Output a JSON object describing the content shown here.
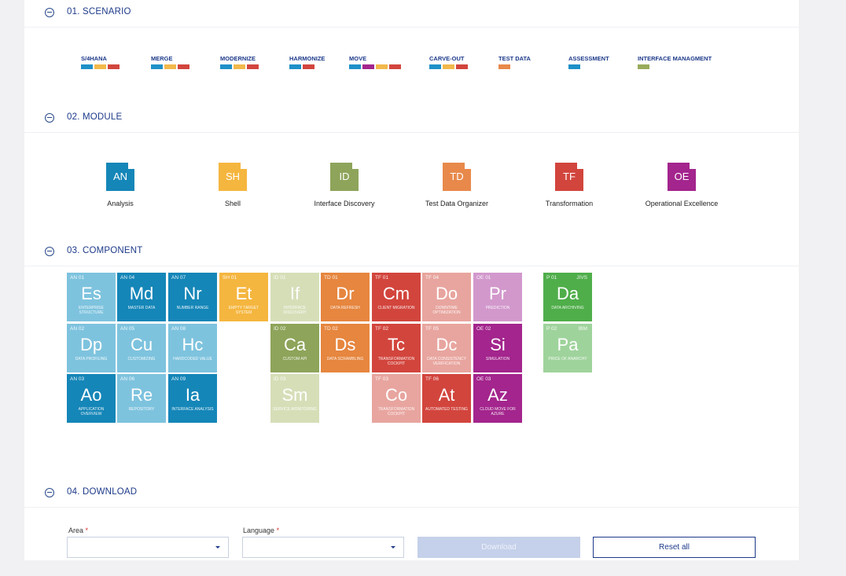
{
  "sections": {
    "scenario": "01. SCENARIO",
    "module": "02. MODULE",
    "component": "03. COMPONENT",
    "download": "04. DOWNLOAD"
  },
  "colors": {
    "blue": "#1e90c8",
    "yellow": "#f2b84b",
    "red": "#d2453d",
    "purple": "#a3258d",
    "orange": "#e8894b",
    "olive": "#98ab5b"
  },
  "scenarios": [
    {
      "label": "S/4HANA",
      "bars": [
        "#1e90c8",
        "#f2b84b",
        "#d2453d"
      ]
    },
    {
      "label": "MERGE",
      "bars": [
        "#1e90c8",
        "#f2b84b",
        "#d2453d"
      ]
    },
    {
      "label": "MODERNIZE",
      "bars": [
        "#1e90c8",
        "#f2b84b",
        "#d2453d"
      ]
    },
    {
      "label": "HARMONIZE",
      "bars": [
        "#1e90c8",
        "#d2453d"
      ]
    },
    {
      "label": "MOVE",
      "bars": [
        "#1e90c8",
        "#a3258d",
        "#f2b84b",
        "#d2453d"
      ]
    },
    {
      "label": "CARVE-OUT",
      "bars": [
        "#1e90c8",
        "#f2b84b",
        "#d2453d"
      ]
    },
    {
      "label": "TEST DATA",
      "bars": [
        "#e8894b"
      ]
    },
    {
      "label": "ASSESSMENT",
      "bars": [
        "#1e90c8"
      ]
    },
    {
      "label": "INTERFACE MANAGMENT",
      "bars": [
        "#98ab5b"
      ]
    }
  ],
  "modules": [
    {
      "abbr": "AN",
      "name": "Analysis",
      "color": "#1586b8"
    },
    {
      "abbr": "SH",
      "name": "Shell",
      "color": "#f5b63f"
    },
    {
      "abbr": "ID",
      "name": "Interface Discovery",
      "color": "#8ea45a"
    },
    {
      "abbr": "TD",
      "name": "Test Data Organizer",
      "color": "#e8894b"
    },
    {
      "abbr": "TF",
      "name": "Transformation",
      "color": "#d2453d"
    },
    {
      "abbr": "OE",
      "name": "Operational Excellence",
      "color": "#a3258d"
    }
  ],
  "components": [
    {
      "code": "AN 01",
      "sym": "Es",
      "desc": "ENTERPRISE STRUCTURE",
      "color": "#7ec3de"
    },
    {
      "code": "AN 04",
      "sym": "Md",
      "desc": "MASTER DATA",
      "color": "#1586b8"
    },
    {
      "code": "AN 07",
      "sym": "Nr",
      "desc": "NUMBER RANGE",
      "color": "#1586b8"
    },
    {
      "code": "SH 01",
      "sym": "Et",
      "desc": "EMPTY TARGET SYSTEM",
      "color": "#f5b63f"
    },
    {
      "code": "ID 01",
      "sym": "If",
      "desc": "INTERFACE DISCOVERY",
      "color": "#d6deb8"
    },
    {
      "code": "TD 01",
      "sym": "Dr",
      "desc": "DATA REFRESH",
      "color": "#e6863f"
    },
    {
      "code": "TF 01",
      "sym": "Cm",
      "desc": "CLIENT MIGRATION",
      "color": "#d2453d"
    },
    {
      "code": "TF 04",
      "sym": "Do",
      "desc": "DOWNTIME OPTIMIZATION",
      "color": "#e8a59f"
    },
    {
      "code": "OE 01",
      "sym": "Pr",
      "desc": "PREDICTION",
      "color": "#d298cc"
    },
    {
      "code": "P 01",
      "code2": "JIVS",
      "sym": "Da",
      "desc": "DATA ARCHIVING",
      "color": "#4fae4a"
    },
    {
      "code": "AN 02",
      "sym": "Dp",
      "desc": "DATA PROFILING",
      "color": "#7ec3de"
    },
    {
      "code": "AN 05",
      "sym": "Cu",
      "desc": "CUSTOMIZING",
      "color": "#7ec3de"
    },
    {
      "code": "AN 08",
      "sym": "Hc",
      "desc": "HARDCODED VALUE",
      "color": "#7ec3de"
    },
    {
      "code": "ID 02",
      "sym": "Ca",
      "desc": "CUSTOM API",
      "color": "#8ea45a"
    },
    {
      "code": "TD 02",
      "sym": "Ds",
      "desc": "DATA SCRAMBLING",
      "color": "#e6863f"
    },
    {
      "code": "TF 02",
      "sym": "Tc",
      "desc": "TRANSFORMATION COCKPIT",
      "color": "#d2453d"
    },
    {
      "code": "TF 05",
      "sym": "Dc",
      "desc": "DATA CONSISTENCY VERIFICATION",
      "color": "#e8a59f"
    },
    {
      "code": "OE 02",
      "sym": "Si",
      "desc": "SIMULATION",
      "color": "#a3258d"
    },
    {
      "code": "P 02",
      "code2": "IBM",
      "sym": "Pa",
      "desc": "PRICE OF ANARCHY",
      "color": "#9fd39c"
    },
    {
      "code": "AN 03",
      "sym": "Ao",
      "desc": "APPLICATION OVERVIEW",
      "color": "#1586b8"
    },
    {
      "code": "AN 06",
      "sym": "Re",
      "desc": "REPOSITORY",
      "color": "#7ec3de"
    },
    {
      "code": "AN 09",
      "sym": "Ia",
      "desc": "INTERFACE ANALYSIS",
      "color": "#1586b8"
    },
    {
      "code": "ID 03",
      "sym": "Sm",
      "desc": "SERVICE MONITORING",
      "color": "#d6deb8"
    },
    {
      "code": "TF 03",
      "sym": "Co",
      "desc": "TRANSFORMATION COCKPIT",
      "color": "#e8a59f"
    },
    {
      "code": "TF 06",
      "sym": "At",
      "desc": "AUTOMATED TESTING",
      "color": "#d2453d"
    },
    {
      "code": "OE 03",
      "sym": "Az",
      "desc": "CLOUD MOVE FOR AZURE",
      "color": "#a3258d"
    }
  ],
  "download": {
    "area_label": "Area",
    "language_label": "Language",
    "required_mark": "*",
    "download_button": "Download",
    "reset_button": "Reset all"
  }
}
